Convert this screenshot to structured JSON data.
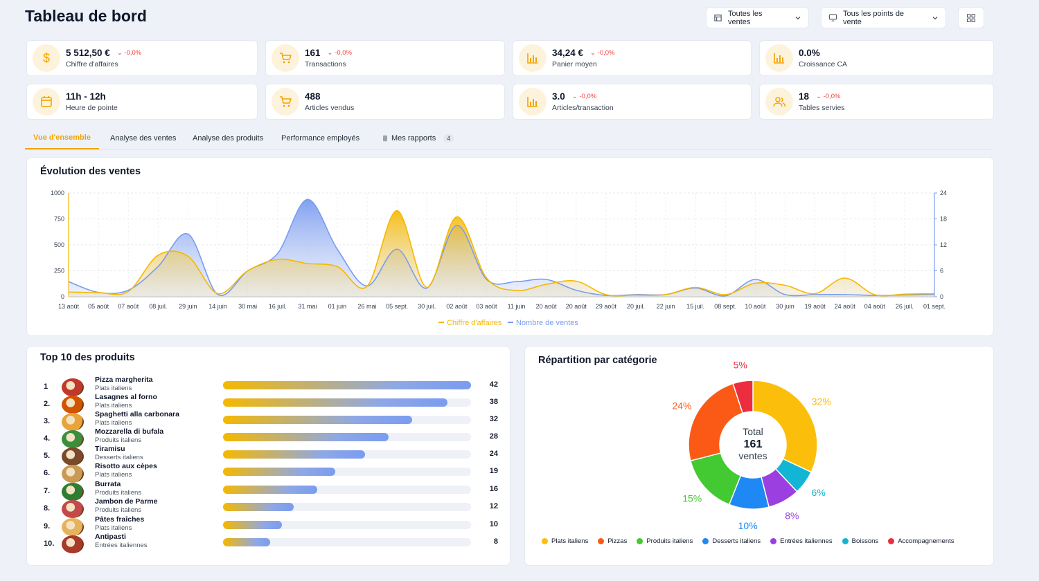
{
  "header": {
    "title": "Tableau de bord",
    "filter_sales": "Toutes les ventes",
    "filter_pos": "Tous les points de vente"
  },
  "kpis": [
    {
      "value": "5 512,50 €",
      "delta": "-0,0%",
      "label": "Chiffre d'affaires",
      "icon": "dollar-icon"
    },
    {
      "value": "161",
      "delta": "-0,0%",
      "label": "Transactions",
      "icon": "cart-icon"
    },
    {
      "value": "34,24 €",
      "delta": "-0,0%",
      "label": "Panier moyen",
      "icon": "bar-chart-icon"
    },
    {
      "value": "0.0%",
      "delta": "",
      "label": "Croissance CA",
      "icon": "bar-chart-icon"
    },
    {
      "value": "11h - 12h",
      "delta": "",
      "label": "Heure de pointe",
      "icon": "calendar-icon"
    },
    {
      "value": "488",
      "delta": "",
      "label": "Articles vendus",
      "icon": "cart-icon"
    },
    {
      "value": "3.0",
      "delta": "-0,0%",
      "label": "Articles/transaction",
      "icon": "bar-chart-icon"
    },
    {
      "value": "18",
      "delta": "-0,0%",
      "label": "Tables servies",
      "icon": "users-icon"
    }
  ],
  "tabs": [
    {
      "label": "Vue d'ensemble",
      "active": true
    },
    {
      "label": "Analyse des ventes"
    },
    {
      "label": "Analyse des produits"
    },
    {
      "label": "Performance employés"
    },
    {
      "label": "Mes rapports",
      "badge": "4"
    }
  ],
  "sales_chart": {
    "title": "Évolution des ventes",
    "chart_data": {
      "type": "area",
      "x": [
        "13 août",
        "05 août",
        "07 août",
        "08 juil.",
        "29 juin",
        "14 juin",
        "30 mai",
        "16 juil.",
        "31 mai",
        "01 juin",
        "26 mai",
        "05 sept.",
        "30 juil.",
        "02 août",
        "03 août",
        "11 juin",
        "20 août",
        "20 août",
        "29 août",
        "20 juil.",
        "22 juin",
        "15 juil.",
        "08 sept.",
        "10 août",
        "30 juin",
        "19 août",
        "24 août",
        "04 août",
        "26 juil.",
        "01 sept."
      ],
      "y_left_ticks": [
        "0",
        "250",
        "500",
        "750",
        "1000"
      ],
      "y_right_ticks": [
        "0",
        "6",
        "12",
        "18",
        "24"
      ],
      "ylim_left": [
        0,
        1000
      ],
      "ylim_right": [
        0,
        24
      ],
      "series": [
        {
          "name": "Chiffre d'affaires",
          "color": "#f5b800",
          "axis": "left",
          "values": [
            45,
            40,
            50,
            400,
            390,
            30,
            250,
            360,
            320,
            290,
            100,
            830,
            90,
            770,
            180,
            60,
            120,
            150,
            20,
            15,
            20,
            90,
            20,
            130,
            110,
            30,
            180,
            20,
            25,
            30
          ]
        },
        {
          "name": "Nombre de ventes",
          "color": "#7a9cf0",
          "axis": "right",
          "values": [
            3.5,
            1,
            1.5,
            7,
            14.5,
            0.5,
            6,
            10,
            22.5,
            11,
            2.5,
            11,
            2,
            16.5,
            4,
            3.5,
            4,
            1.5,
            0.3,
            0.5,
            0.5,
            2,
            0.2,
            4,
            0.5,
            0.5,
            0.5,
            0.3,
            0.4,
            0.5
          ]
        }
      ]
    }
  },
  "top_products": {
    "title": "Top 10 des produits",
    "max": 42,
    "items": [
      {
        "rank": "1",
        "name": "Pizza margherita",
        "category": "Plats italiens",
        "count": 42,
        "color": "#c0392b"
      },
      {
        "rank": "2.",
        "name": "Lasagnes al forno",
        "category": "Plats italiens",
        "count": 38,
        "color": "#d35400"
      },
      {
        "rank": "3.",
        "name": "Spaghetti alla carbonara",
        "category": "Plats italiens",
        "count": 32,
        "color": "#e8a33a"
      },
      {
        "rank": "4.",
        "name": "Mozzarella di bufala",
        "category": "Produits italiens",
        "count": 28,
        "color": "#3c8d3c"
      },
      {
        "rank": "5.",
        "name": "Tiramisu",
        "category": "Desserts italiens",
        "count": 24,
        "color": "#7a4a2a"
      },
      {
        "rank": "6.",
        "name": "Risotto aux cèpes",
        "category": "Plats italiens",
        "count": 19,
        "color": "#c99a55"
      },
      {
        "rank": "7.",
        "name": "Burrata",
        "category": "Produits italiens",
        "count": 16,
        "color": "#2f7d32"
      },
      {
        "rank": "8.",
        "name": "Jambon de Parme",
        "category": "Produits italiens",
        "count": 12,
        "color": "#c44a4a"
      },
      {
        "rank": "9.",
        "name": "Pâtes fraîches",
        "category": "Plats italiens",
        "count": 10,
        "color": "#e6b35c"
      },
      {
        "rank": "10.",
        "name": "Antipasti",
        "category": "Entrées italiennes",
        "count": 8,
        "color": "#a83a2a"
      }
    ]
  },
  "category_chart": {
    "title": "Répartition par catégorie",
    "center_label": "Total",
    "center_value": "161",
    "center_unit": "ventes",
    "chart_data": {
      "type": "pie",
      "slices": [
        {
          "name": "Plats italiens",
          "value": 32,
          "label": "32%",
          "color": "#fbbf0b"
        },
        {
          "name": "Boissons",
          "value": 6,
          "label": "6%",
          "color": "#12b5d4"
        },
        {
          "name": "Entrées italiennes",
          "value": 8,
          "label": "8%",
          "color": "#9b3fe0"
        },
        {
          "name": "Desserts italiens",
          "value": 10,
          "label": "10%",
          "color": "#1e88f5"
        },
        {
          "name": "Produits italiens",
          "value": 15,
          "label": "15%",
          "color": "#43c931"
        },
        {
          "name": "Pizzas",
          "value": 24,
          "label": "24%",
          "color": "#fb5a16"
        },
        {
          "name": "Accompagnements",
          "value": 5,
          "label": "5%",
          "color": "#ec2d3f"
        }
      ]
    },
    "legend": [
      {
        "name": "Plats italiens",
        "color": "#fbbf0b"
      },
      {
        "name": "Pizzas",
        "color": "#fb5a16"
      },
      {
        "name": "Produits italiens",
        "color": "#43c931"
      },
      {
        "name": "Desserts italiens",
        "color": "#1e88f5"
      },
      {
        "name": "Entrées italiennes",
        "color": "#9b3fe0"
      },
      {
        "name": "Boissons",
        "color": "#12b5d4"
      },
      {
        "name": "Accompagnements",
        "color": "#ec2d3f"
      }
    ]
  }
}
